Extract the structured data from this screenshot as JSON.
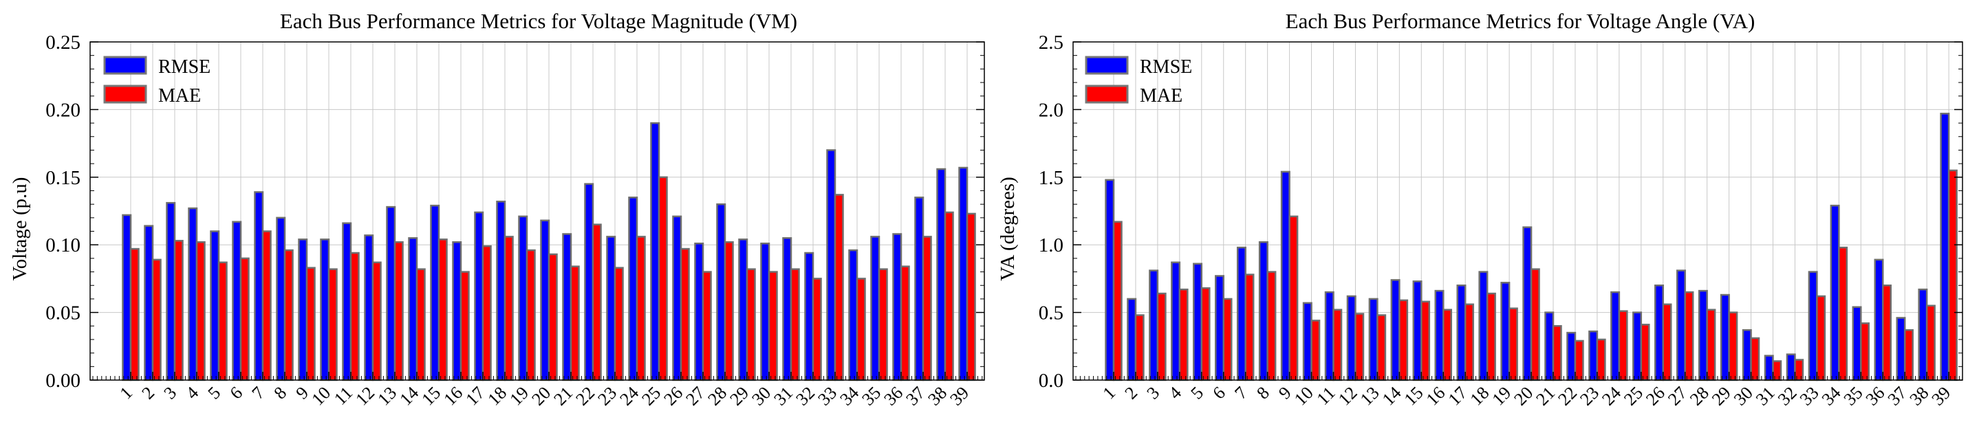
{
  "chart_data": [
    {
      "type": "bar",
      "title": "Each Bus Performance Metrics for Voltage Magnitude (VM)",
      "xlabel": "",
      "ylabel": "Voltage (p.u)",
      "ylim": [
        0,
        0.25
      ],
      "yticks": [
        "0.00",
        "0.05",
        "0.10",
        "0.15",
        "0.20",
        "0.25"
      ],
      "categories": [
        "1",
        "2",
        "3",
        "4",
        "5",
        "6",
        "7",
        "8",
        "9",
        "10",
        "11",
        "12",
        "13",
        "14",
        "15",
        "16",
        "17",
        "18",
        "19",
        "20",
        "21",
        "22",
        "23",
        "24",
        "25",
        "26",
        "27",
        "28",
        "29",
        "30",
        "31",
        "32",
        "33",
        "34",
        "35",
        "36",
        "37",
        "38",
        "39"
      ],
      "series": [
        {
          "name": "RMSE",
          "color": "#0000ff",
          "values": [
            0.122,
            0.114,
            0.131,
            0.127,
            0.11,
            0.117,
            0.139,
            0.12,
            0.104,
            0.104,
            0.116,
            0.107,
            0.128,
            0.105,
            0.129,
            0.102,
            0.124,
            0.132,
            0.121,
            0.118,
            0.108,
            0.145,
            0.106,
            0.135,
            0.19,
            0.121,
            0.101,
            0.13,
            0.104,
            0.101,
            0.105,
            0.094,
            0.17,
            0.096,
            0.106,
            0.108,
            0.135,
            0.156,
            0.157
          ]
        },
        {
          "name": "MAE",
          "color": "#ff0000",
          "values": [
            0.097,
            0.089,
            0.103,
            0.102,
            0.087,
            0.09,
            0.11,
            0.096,
            0.083,
            0.082,
            0.094,
            0.087,
            0.102,
            0.082,
            0.104,
            0.08,
            0.099,
            0.106,
            0.096,
            0.093,
            0.084,
            0.115,
            0.083,
            0.106,
            0.15,
            0.097,
            0.08,
            0.102,
            0.082,
            0.08,
            0.082,
            0.075,
            0.137,
            0.075,
            0.082,
            0.084,
            0.106,
            0.124,
            0.123
          ]
        }
      ],
      "legend_position": "top-left",
      "grid": true
    },
    {
      "type": "bar",
      "title": "Each Bus Performance Metrics for Voltage Angle (VA)",
      "xlabel": "",
      "ylabel": "VA (degrees)",
      "ylim": [
        0,
        2.5
      ],
      "yticks": [
        "0.0",
        "0.5",
        "1.0",
        "1.5",
        "2.0",
        "2.5"
      ],
      "categories": [
        "1",
        "2",
        "3",
        "4",
        "5",
        "6",
        "7",
        "8",
        "9",
        "10",
        "11",
        "12",
        "13",
        "14",
        "15",
        "16",
        "17",
        "18",
        "19",
        "20",
        "21",
        "22",
        "23",
        "24",
        "25",
        "26",
        "27",
        "28",
        "29",
        "30",
        "31",
        "32",
        "33",
        "34",
        "35",
        "36",
        "37",
        "38",
        "39"
      ],
      "series": [
        {
          "name": "RMSE",
          "color": "#0000ff",
          "values": [
            1.48,
            0.6,
            0.81,
            0.87,
            0.86,
            0.77,
            0.98,
            1.02,
            1.54,
            0.57,
            0.65,
            0.62,
            0.6,
            0.74,
            0.73,
            0.66,
            0.7,
            0.8,
            0.72,
            1.13,
            0.5,
            0.35,
            0.36,
            0.65,
            0.5,
            0.7,
            0.81,
            0.66,
            0.63,
            0.37,
            0.18,
            0.19,
            0.8,
            1.29,
            0.54,
            0.89,
            0.46,
            0.67,
            1.97
          ]
        },
        {
          "name": "MAE",
          "color": "#ff0000",
          "values": [
            1.17,
            0.48,
            0.64,
            0.67,
            0.68,
            0.6,
            0.78,
            0.8,
            1.21,
            0.44,
            0.52,
            0.49,
            0.48,
            0.59,
            0.58,
            0.52,
            0.56,
            0.64,
            0.53,
            0.82,
            0.4,
            0.29,
            0.3,
            0.51,
            0.41,
            0.56,
            0.65,
            0.52,
            0.5,
            0.31,
            0.14,
            0.15,
            0.62,
            0.98,
            0.42,
            0.7,
            0.37,
            0.55,
            1.55
          ]
        }
      ],
      "legend_position": "top-left",
      "grid": true
    }
  ]
}
